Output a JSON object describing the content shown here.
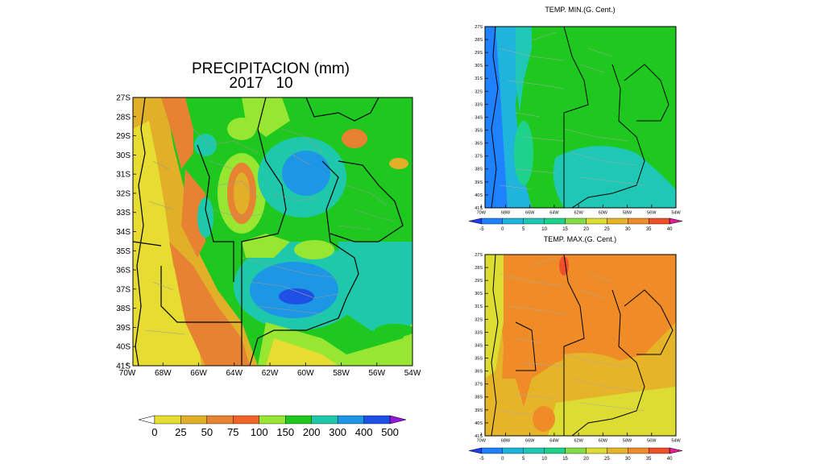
{
  "precip": {
    "title_line1": "PRECIPITACION (mm)",
    "title_line2": "2017   10",
    "lat_labels": [
      "27S",
      "28S",
      "29S",
      "30S",
      "31S",
      "32S",
      "33S",
      "34S",
      "35S",
      "36S",
      "37S",
      "38S",
      "39S",
      "40S",
      "41S"
    ],
    "lon_labels": [
      "70W",
      "68W",
      "66W",
      "64W",
      "62W",
      "60W",
      "58W",
      "56W",
      "54W"
    ],
    "colorbar": {
      "labels": [
        "0",
        "25",
        "50",
        "75",
        "100",
        "150",
        "200",
        "300",
        "400",
        "500"
      ],
      "colors": [
        "#ffffff",
        "#e6dc32",
        "#e1af28",
        "#e68232",
        "#f06428",
        "#96e632",
        "#1ec81e",
        "#1ec8aa",
        "#1e96e6",
        "#1e50e6",
        "#9614dc"
      ]
    }
  },
  "tmin": {
    "title": "TEMP. MIN.(G. Cent.)",
    "lat_labels": [
      "27S",
      "28S",
      "29S",
      "30S",
      "31S",
      "32S",
      "33S",
      "34S",
      "35S",
      "36S",
      "37S",
      "38S",
      "39S",
      "40S",
      "41S"
    ],
    "lon_labels": [
      "70W",
      "68W",
      "66W",
      "64W",
      "62W",
      "60W",
      "58W",
      "56W",
      "54W"
    ],
    "colorbar": {
      "labels": [
        "-5",
        "0",
        "5",
        "10",
        "15",
        "20",
        "25",
        "30",
        "35",
        "40"
      ],
      "colors": [
        "#1e3cff",
        "#1e82ff",
        "#1eb4dc",
        "#1ec8b4",
        "#1ed28c",
        "#82dc46",
        "#dcdc32",
        "#e6b428",
        "#f08c28",
        "#f05028",
        "#e61e96"
      ]
    }
  },
  "tmax": {
    "title": "TEMP. MAX.(G. Cent.)",
    "lat_labels": [
      "27S",
      "28S",
      "29S",
      "30S",
      "31S",
      "32S",
      "33S",
      "34S",
      "35S",
      "36S",
      "37S",
      "38S",
      "39S",
      "40S",
      "41S"
    ],
    "lon_labels": [
      "70W",
      "68W",
      "66W",
      "64W",
      "62W",
      "60W",
      "58W",
      "56W",
      "54W"
    ],
    "colorbar": {
      "labels": [
        "-5",
        "0",
        "5",
        "10",
        "15",
        "20",
        "25",
        "30",
        "35",
        "40"
      ],
      "colors": [
        "#1e3cff",
        "#1e82ff",
        "#1eb4dc",
        "#1ec8b4",
        "#1ed28c",
        "#82dc46",
        "#dcdc32",
        "#e6b428",
        "#f08c28",
        "#f05028",
        "#e61e96"
      ]
    }
  }
}
